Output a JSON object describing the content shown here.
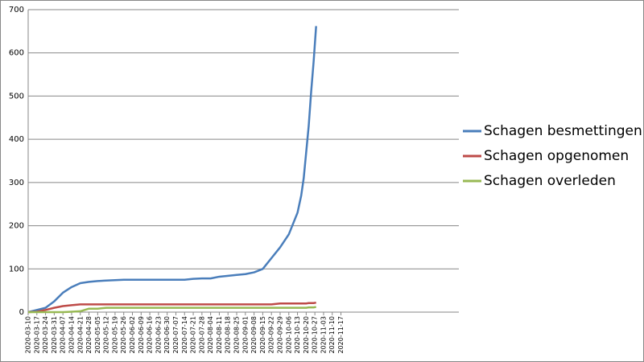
{
  "chart_data": {
    "type": "line",
    "x": [
      "2020-03-10",
      "2020-03-17",
      "2020-03-24",
      "2020-03-31",
      "2020-04-07",
      "2020-04-14",
      "2020-04-21",
      "2020-04-28",
      "2020-05-05",
      "2020-05-12",
      "2020-05-19",
      "2020-05-26",
      "2020-06-02",
      "2020-06-09",
      "2020-06-16",
      "2020-06-23",
      "2020-06-30",
      "2020-07-07",
      "2020-07-14",
      "2020-07-21",
      "2020-07-28",
      "2020-08-04",
      "2020-08-11",
      "2020-08-18",
      "2020-08-25",
      "2020-09-01",
      "2020-09-08",
      "2020-09-15",
      "2020-09-22",
      "2020-09-29",
      "2020-10-06",
      "2020-10-13",
      "2020-10-16",
      "2020-10-18",
      "2020-10-20",
      "2020-10-22",
      "2020-10-24",
      "2020-10-26",
      "2020-10-28"
    ],
    "series": [
      {
        "name": "Schagen besmettingen",
        "color": "#4a7ebb",
        "values": [
          0,
          5,
          10,
          25,
          45,
          58,
          67,
          70,
          72,
          73,
          74,
          75,
          75,
          75,
          75,
          75,
          75,
          75,
          75,
          77,
          78,
          78,
          82,
          84,
          86,
          88,
          92,
          100,
          125,
          150,
          180,
          230,
          270,
          310,
          370,
          430,
          510,
          580,
          662
        ]
      },
      {
        "name": "Schagen opgenomen",
        "color": "#be4b48",
        "values": [
          0,
          1,
          5,
          10,
          14,
          16,
          18,
          18,
          18,
          18,
          18,
          18,
          18,
          18,
          18,
          18,
          18,
          18,
          18,
          18,
          18,
          18,
          18,
          18,
          18,
          18,
          18,
          18,
          18,
          20,
          20,
          20,
          20,
          20,
          20,
          21,
          21,
          21,
          22
        ]
      },
      {
        "name": "Schagen overleden",
        "color": "#98b954",
        "values": [
          0,
          0,
          0,
          0,
          0,
          1,
          2,
          8,
          8,
          10,
          10,
          10,
          10,
          10,
          10,
          10,
          10,
          10,
          10,
          10,
          10,
          10,
          10,
          10,
          10,
          10,
          10,
          10,
          10,
          10,
          10,
          10,
          10,
          10,
          10,
          11,
          11,
          11,
          12
        ]
      }
    ],
    "xlim": [
      "2020-03-10",
      "2021-02-20"
    ],
    "xticks": [
      "2020-03-10",
      "2020-03-17",
      "2020-03-24",
      "2020-03-31",
      "2020-04-07",
      "2020-04-14",
      "2020-04-21",
      "2020-04-28",
      "2020-05-05",
      "2020-05-12",
      "2020-05-19",
      "2020-05-26",
      "2020-06-02",
      "2020-06-09",
      "2020-06-16",
      "2020-06-23",
      "2020-06-30",
      "2020-07-07",
      "2020-07-14",
      "2020-07-21",
      "2020-07-28",
      "2020-08-04",
      "2020-08-11",
      "2020-08-18",
      "2020-08-25",
      "2020-09-01",
      "2020-09-08",
      "2020-09-15",
      "2020-09-22",
      "2020-09-29",
      "2020-10-06",
      "2020-10-13",
      "2020-10-20",
      "2020-10-27",
      "2020-11-03",
      "2020-11-10",
      "2020-11-17"
    ],
    "ylim": [
      0,
      700
    ],
    "yticks": [
      0,
      100,
      200,
      300,
      400,
      500,
      600,
      700
    ],
    "grid": true,
    "legend": "right"
  }
}
